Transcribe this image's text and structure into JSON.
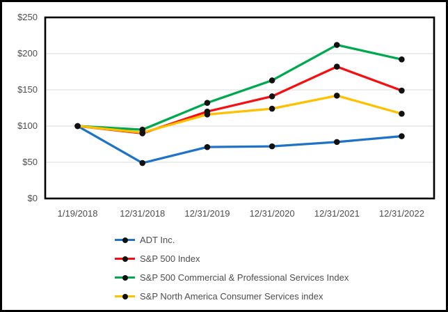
{
  "chart_data": {
    "type": "line",
    "title": "",
    "xlabel": "",
    "ylabel": "",
    "x_labels": [
      "1/19/2018",
      "12/31/2018",
      "12/31/2019",
      "12/31/2020",
      "12/31/2021",
      "12/31/2022"
    ],
    "y_tick_labels": [
      "$250",
      "$200",
      "$150",
      "$100",
      "$50",
      "$0"
    ],
    "y_ticks": [
      250,
      200,
      150,
      100,
      50,
      0
    ],
    "ylim": [
      0,
      250
    ],
    "grid": true,
    "gridline_color": "#d9d9d9",
    "plot_border_color": "#000000",
    "marker_color": "#111111",
    "axis_text_color": "#4d4d4d",
    "legend_position": "bottom-left",
    "series": [
      {
        "name": "ADT Inc.",
        "color": "#1e73c8",
        "values": [
          100,
          49,
          71,
          72,
          78,
          86
        ]
      },
      {
        "name": "S&P 500 Index",
        "color": "#f50f10",
        "values": [
          100,
          90,
          120,
          141,
          182,
          149
        ]
      },
      {
        "name": "S&P 500 Commercial & Professional Services Index",
        "color": "#00a84f",
        "values": [
          100,
          95,
          132,
          163,
          212,
          192
        ]
      },
      {
        "name": "S&P North America Consumer Services index",
        "color": "#ffc000",
        "values": [
          100,
          91,
          116,
          124,
          142,
          117
        ]
      }
    ]
  }
}
